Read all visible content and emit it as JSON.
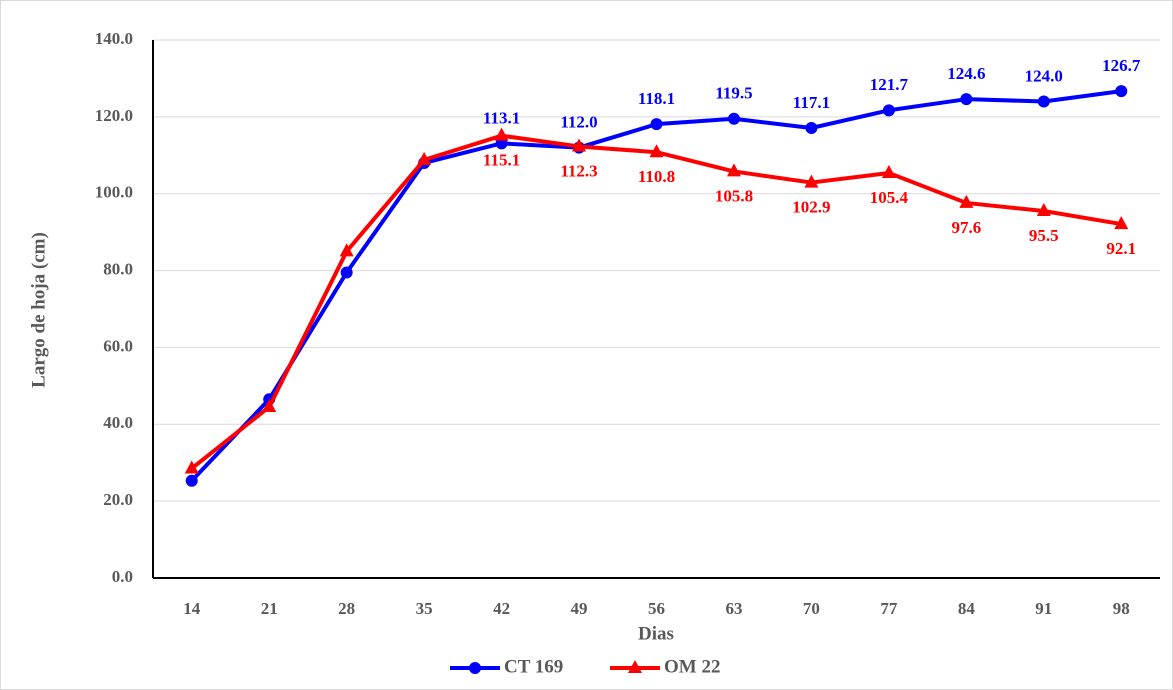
{
  "chart_data": {
    "type": "line",
    "ylabel": "Largo de hoja (cm)",
    "xlabel": "Dias",
    "categories": [
      "14",
      "21",
      "28",
      "35",
      "42",
      "49",
      "56",
      "63",
      "70",
      "77",
      "84",
      "91",
      "98"
    ],
    "series": [
      {
        "name": "CT 169",
        "color": "#0000ff",
        "marker": "circle",
        "label_position": "above",
        "values": [
          25.3,
          46.5,
          79.5,
          108.0,
          113.1,
          112.0,
          118.1,
          119.5,
          117.1,
          121.7,
          124.6,
          124.0,
          126.7
        ],
        "value_labels": [
          null,
          null,
          null,
          null,
          "113.1",
          "112.0",
          "118.1",
          "119.5",
          "117.1",
          "121.7",
          "124.6",
          "124.0",
          "126.7"
        ]
      },
      {
        "name": "OM 22",
        "color": "#ff0000",
        "marker": "triangle",
        "label_position": "below",
        "values": [
          28.5,
          44.5,
          85.0,
          108.8,
          115.1,
          112.3,
          110.8,
          105.8,
          102.9,
          105.4,
          97.6,
          95.5,
          92.1
        ],
        "value_labels": [
          null,
          null,
          null,
          null,
          "115.1",
          "112.3",
          "110.8",
          "105.8",
          "102.9",
          "105.4",
          "97.6",
          "95.5",
          "92.1"
        ]
      }
    ],
    "ylim": [
      0,
      140
    ],
    "yticks": [
      {
        "value": 0,
        "label": "0.0"
      },
      {
        "value": 20,
        "label": "20.0"
      },
      {
        "value": 40,
        "label": "40.0"
      },
      {
        "value": 60,
        "label": "60.0"
      },
      {
        "value": 80,
        "label": "80.0"
      },
      {
        "value": 100,
        "label": "100.0"
      },
      {
        "value": 120,
        "label": "120.0"
      },
      {
        "value": 140,
        "label": "140.0"
      }
    ],
    "grid": true,
    "legend": "bottom"
  }
}
